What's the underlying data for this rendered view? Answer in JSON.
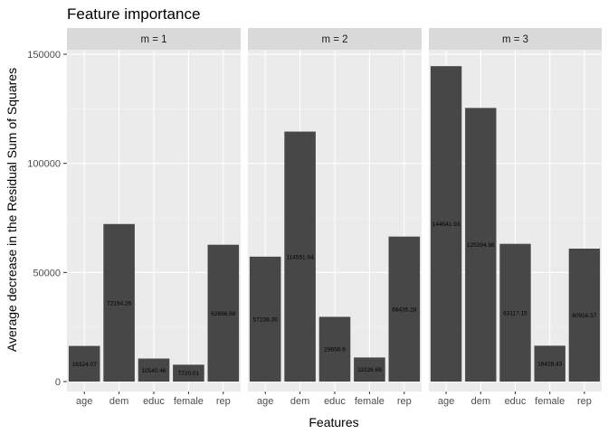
{
  "chart_data": {
    "type": "bar",
    "title": "Feature importance",
    "xlabel": "Features",
    "ylabel": "Average decrease in the Residual Sum of Squares",
    "categories": [
      "age",
      "dem",
      "educ",
      "female",
      "rep"
    ],
    "ylim": [
      0,
      160000
    ],
    "yticks": [
      0,
      50000,
      100000,
      150000
    ],
    "ytick_labels": [
      "0",
      "50000",
      "100000",
      "150000"
    ],
    "facets": [
      {
        "label": "m = 1",
        "values": [
          16324.07,
          72194.26,
          10540.46,
          7720.01,
          62696.88
        ],
        "value_labels": [
          "16324.07",
          "72194.26",
          "10540.46",
          "7720.01",
          "62696.88"
        ]
      },
      {
        "label": "m = 2",
        "values": [
          57238.35,
          114551.64,
          29656.9,
          11026.69,
          66435.28
        ],
        "value_labels": [
          "57238.35",
          "114551.64",
          "29656.9",
          "11026.69",
          "66435.28"
        ]
      },
      {
        "label": "m = 3",
        "values": [
          144541.93,
          125394.96,
          63117.15,
          16428.43,
          60916.57
        ],
        "value_labels": [
          "144541.93",
          "125394.96",
          "63117.15",
          "16428.43",
          "60916.57"
        ]
      }
    ],
    "grid": true,
    "bar_color": "#474747",
    "panel_color": "#EBEBEB",
    "strip_color": "#D9D9D9"
  }
}
